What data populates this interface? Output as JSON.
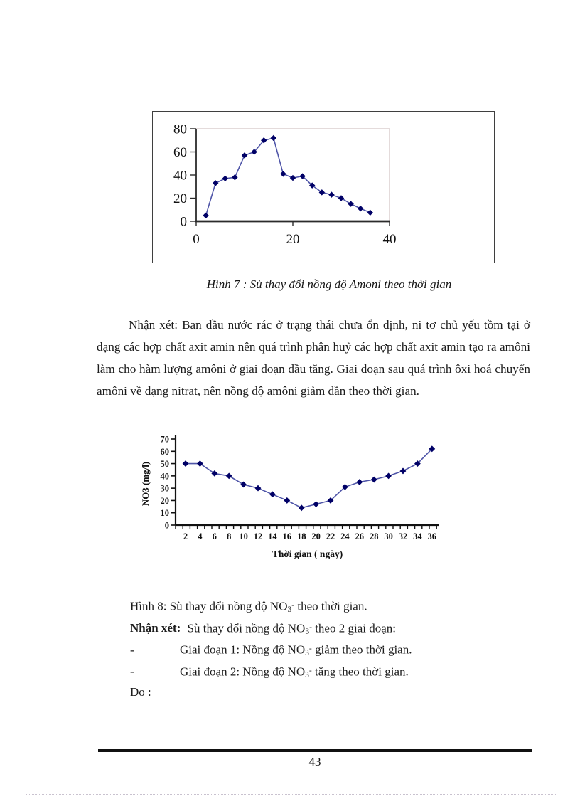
{
  "page": {
    "number": "43"
  },
  "figure7": {
    "caption": "Hình 7 : Sù thay đổi nồng độ Amoni theo thời gian"
  },
  "paragraph": "Nhận xét: Ban đầu nước rác ở trạng thái chưa ổn định, ni tơ chủ yếu tồm tại ở dạng các hợp chất axit amin nên quá trình phân huỷ các hợp chất axit amin tạo ra amôni làm cho hàm lượng amôni ở giai đoạn đầu tăng. Giai đoạn sau quá trình ôxi hoá chuyển amôni về dạng nitrat, nên nồng độ amôni giảm dần theo thời gian.",
  "chart_data": [
    {
      "type": "line",
      "title": "",
      "x": [
        2,
        4,
        6,
        8,
        10,
        12,
        14,
        16,
        18,
        20,
        22,
        24,
        26,
        28,
        30,
        32,
        34,
        36
      ],
      "values": [
        5,
        33,
        37,
        38,
        57,
        60,
        70,
        72,
        41,
        37.5,
        39,
        31,
        25,
        23,
        20,
        15,
        11,
        7.5
      ],
      "xlabel": "",
      "ylabel": "",
      "xticks": [
        0,
        20,
        40
      ],
      "yticks": [
        0,
        20,
        40,
        60,
        80
      ],
      "xlim": [
        0,
        40
      ],
      "ylim": [
        0,
        80
      ],
      "grid": false,
      "legend": "none",
      "marker": "diamond",
      "line_color": "#4f55a8",
      "marker_color": "#000066"
    },
    {
      "type": "line",
      "title": "",
      "categories": [
        "2",
        "4",
        "6",
        "8",
        "10",
        "12",
        "14",
        "16",
        "18",
        "20",
        "22",
        "24",
        "26",
        "28",
        "30",
        "32",
        "34",
        "36"
      ],
      "values": [
        50,
        50,
        42,
        40,
        33,
        30,
        25,
        20,
        14,
        17,
        20,
        31,
        35,
        37,
        40,
        44,
        50,
        62
      ],
      "xlabel": "Thời gian ( ngày)",
      "ylabel": "NO3 (mg/l)",
      "yticks": [
        0,
        10,
        20,
        30,
        40,
        50,
        60,
        70
      ],
      "ylim": [
        0,
        70
      ],
      "grid": false,
      "legend": "none",
      "marker": "diamond",
      "line_color": "#4f55a8",
      "marker_color": "#000066"
    }
  ],
  "notes": {
    "hinh8": {
      "pre": "Hình 8: Sù thay đổi nồng độ NO",
      "sub": "3",
      "sup": "-",
      "post": " theo thời gian."
    },
    "nhanxet_label": "Nhận xét:",
    "nhanxet": {
      "pre": " Sù thay đổi nồng độ NO",
      "sub": "3",
      "sup": "-",
      "post": " theo 2 giai đoạn:"
    },
    "item1": {
      "dash": "-",
      "pre": "Giai đoạn 1: Nồng độ NO",
      "sub": "3",
      "sup": "-",
      "post": " giảm theo thời gian."
    },
    "item2": {
      "dash": "-",
      "pre": "Giai đoạn 2: Nồng độ NO",
      "sub": "3",
      "sup": "-",
      "post": " tăng theo thời gian."
    },
    "do_line": "Do :"
  }
}
